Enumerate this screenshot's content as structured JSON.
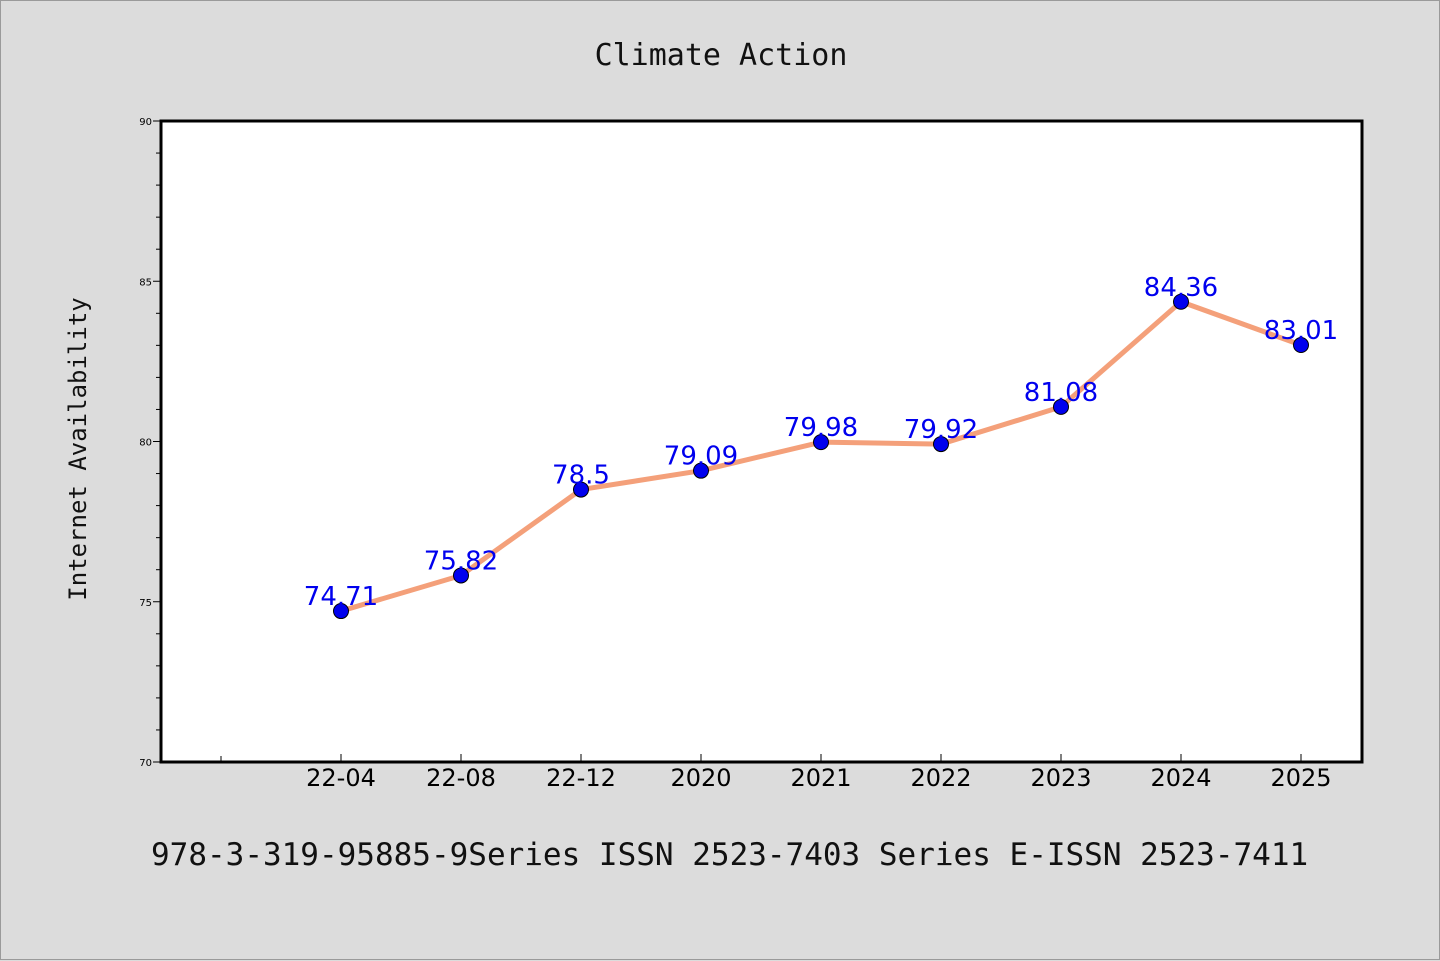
{
  "chart_data": {
    "type": "line",
    "title": "Climate Action",
    "xlabel": "",
    "ylabel": "Internet Availability",
    "ylim": [
      70,
      90
    ],
    "yticks": [
      "70",
      "75",
      "80",
      "85",
      "90"
    ],
    "categories": [
      "22-04",
      "22-08",
      "22-12",
      "2020",
      "2021",
      "2022",
      "2023",
      "2024",
      "2025"
    ],
    "series": [
      {
        "values": [
          74.71,
          75.82,
          78.5,
          79.09,
          79.98,
          79.92,
          81.08,
          84.36,
          83.01
        ],
        "labels": [
          "74.71",
          "75.82",
          "78.5",
          "79.09",
          "79.98",
          "79.92",
          "81.08",
          "84.36",
          "83.01"
        ],
        "line_color": "#f4a07a",
        "marker_color": "#0000ee"
      }
    ],
    "grid": false,
    "legend": "none"
  },
  "caption": "978-3-319-95885-9Series ISSN 2523-7403 Series E-ISSN 2523-7411"
}
